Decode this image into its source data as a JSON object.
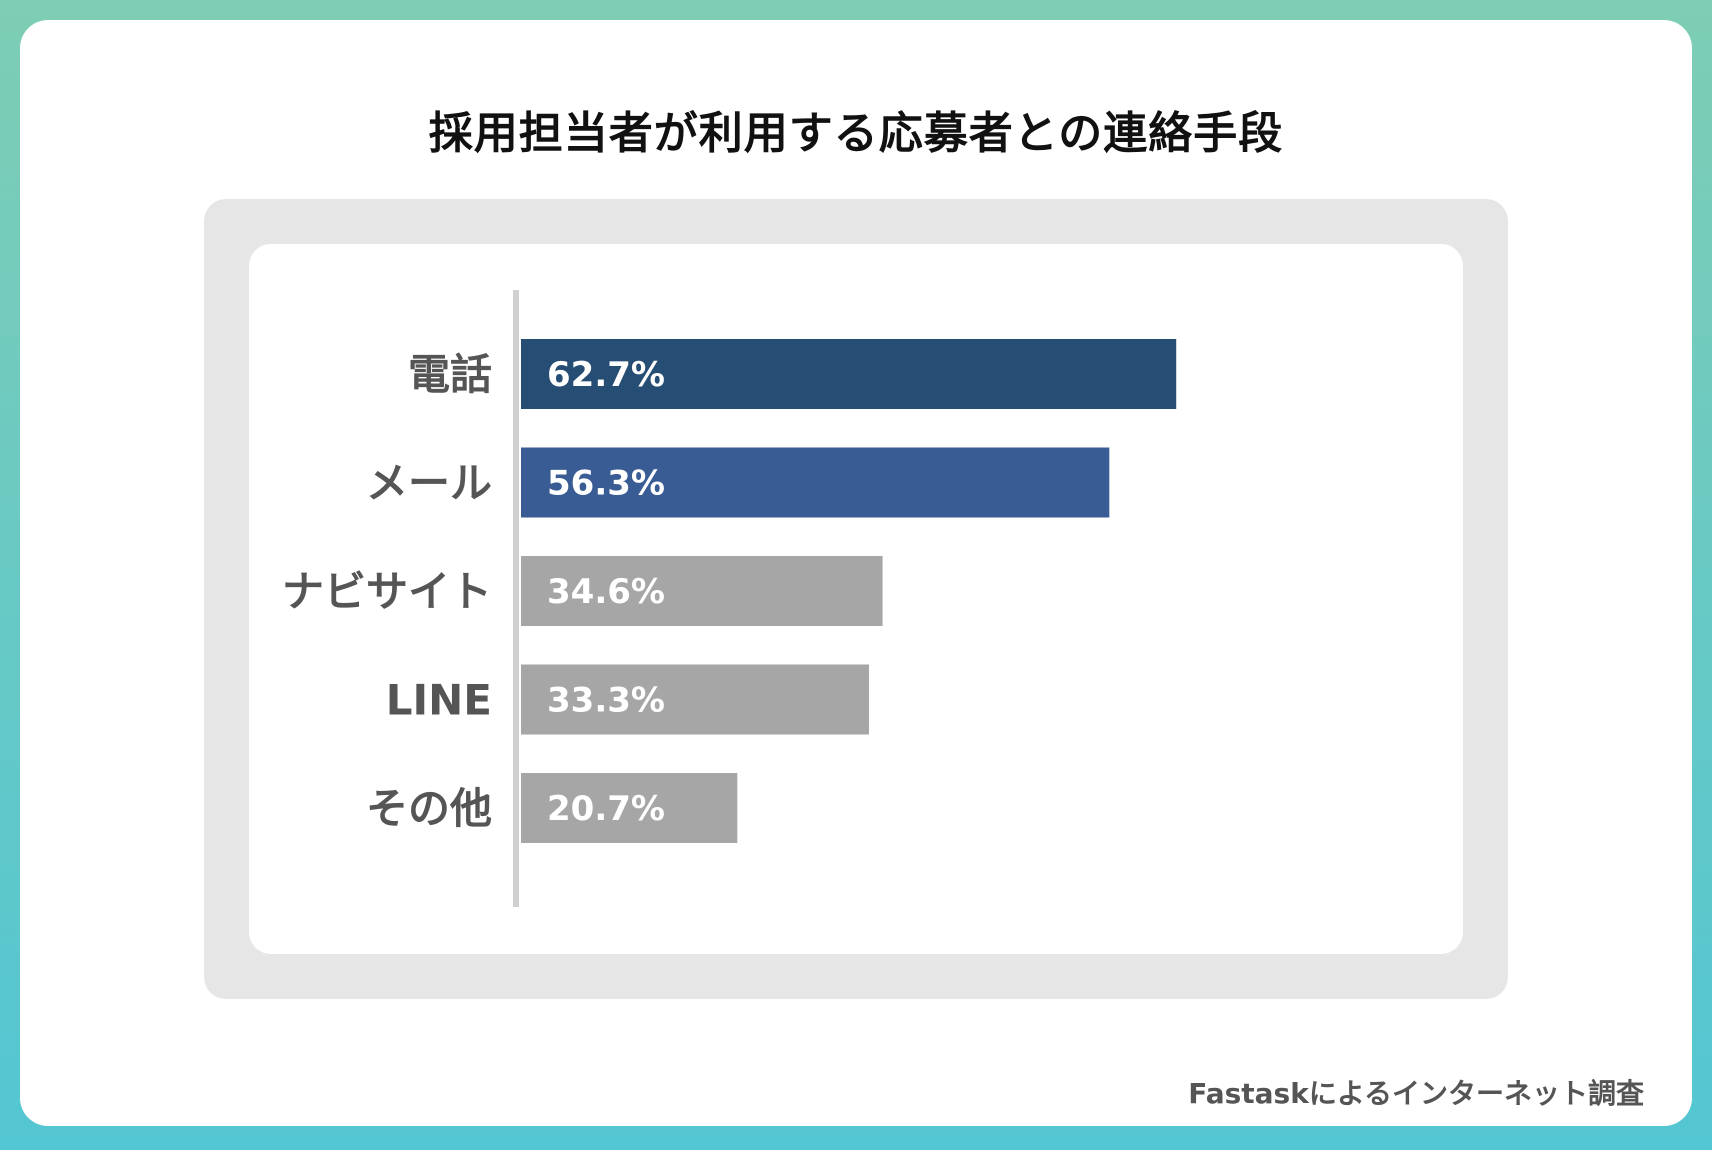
{
  "title": "採用担当者が利用する応募者との連絡手段",
  "footer": "Fastaskによるインターネット調査",
  "colors": {
    "highlight_1": "#264d73",
    "highlight_2": "#3a5c94",
    "muted": "#a6a6a6",
    "axis": "#d0d0d0",
    "label": "#555555"
  },
  "chart_data": {
    "type": "bar",
    "orientation": "horizontal",
    "title": "採用担当者が利用する応募者との連絡手段",
    "xlabel": "",
    "ylabel": "",
    "categories": [
      "電話",
      "メール",
      "ナビサイト",
      "LINE",
      "その他"
    ],
    "values": [
      62.7,
      56.3,
      34.6,
      33.3,
      20.7
    ],
    "value_labels": [
      "62.7%",
      "56.3%",
      "34.6%",
      "33.3%",
      "20.7%"
    ],
    "bar_colors": [
      "#264d73",
      "#3a5c94",
      "#a6a6a6",
      "#a6a6a6",
      "#a6a6a6"
    ],
    "unit": "%",
    "xlim": [
      0,
      100
    ],
    "grid": false,
    "legend": "none"
  }
}
